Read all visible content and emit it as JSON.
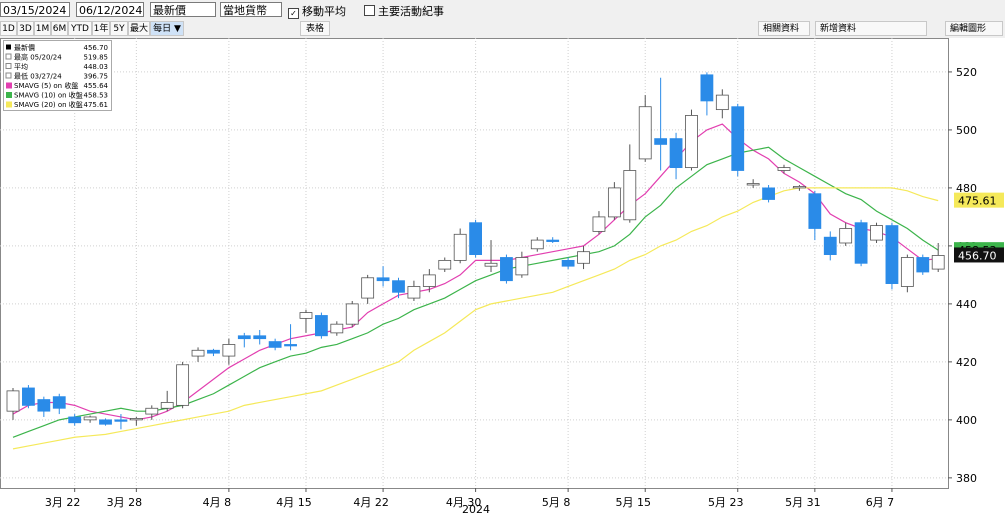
{
  "toolbar": {
    "start_date": "03/15/2024",
    "end_date": "06/12/2024",
    "field": "最新價",
    "currency": "當地貨幣",
    "moving_average": "移動平均",
    "events": "主要活動紀事"
  },
  "buttons": [
    "1D",
    "3D",
    "1M",
    "6M",
    "YTD",
    "1年",
    "5Y",
    "最大",
    "每日 ▼",
    "表格"
  ],
  "right_buttons": [
    "相關資料",
    "新增資料",
    "編輯圖形"
  ],
  "chart_data": {
    "type": "candlestick",
    "categories": [
      null,
      null,
      null,
      null,
      "3月 22",
      null,
      null,
      null,
      "3月 28",
      null,
      null,
      null,
      null,
      null,
      "4月 8",
      null,
      null,
      null,
      null,
      "4月 15",
      null,
      null,
      null,
      null,
      "4月 22",
      null,
      null,
      null,
      null,
      null,
      "4月 30",
      null,
      null,
      null,
      null,
      null,
      "5月 8",
      null,
      null,
      null,
      null,
      "5月 15",
      null,
      null,
      null,
      null,
      null,
      "5月 23",
      null,
      null,
      null,
      null,
      "5月 31",
      null,
      null,
      null,
      null,
      "6月 7",
      null,
      null,
      null
    ],
    "open": [
      403,
      411,
      407,
      408,
      401,
      400,
      400,
      400,
      400,
      402,
      404,
      405,
      422,
      424,
      422,
      429,
      429,
      427,
      426,
      435,
      436,
      430,
      433,
      442,
      449,
      448,
      442,
      446,
      452,
      455,
      468,
      453,
      456,
      450,
      459,
      462,
      455,
      454,
      465,
      470,
      469,
      490,
      497,
      497,
      487,
      519,
      507,
      508,
      481,
      480,
      486,
      480,
      478,
      463,
      461,
      468,
      462,
      467,
      446,
      456,
      452
    ],
    "high": [
      411,
      412,
      408,
      409,
      402,
      401.5,
      400.5,
      402,
      401,
      405,
      410,
      420,
      425,
      424.5,
      428,
      430,
      431,
      428,
      433,
      438,
      437,
      434,
      441,
      450,
      453,
      449,
      448,
      452,
      456,
      466,
      469,
      462,
      457,
      458,
      463,
      463,
      456,
      460,
      472,
      482,
      495,
      512,
      518,
      499,
      507,
      519.85,
      514,
      509,
      483,
      481,
      488,
      481,
      479,
      465,
      468,
      469,
      468,
      468,
      457,
      457,
      461
    ],
    "low": [
      400,
      404,
      401,
      402,
      398,
      399,
      398,
      396.75,
      398,
      400,
      403,
      404,
      420,
      422,
      419,
      425,
      426,
      424,
      424,
      430,
      428,
      429,
      432,
      440,
      446,
      442,
      441,
      444,
      451,
      454,
      456,
      451,
      447,
      449,
      458,
      461,
      452,
      452,
      464,
      469,
      468,
      489,
      486,
      483,
      486,
      505,
      504,
      484,
      480,
      475,
      485,
      479,
      462,
      455,
      460,
      453,
      461,
      445,
      444,
      450,
      451
    ],
    "close": [
      410,
      405,
      403,
      404,
      399,
      401,
      398.5,
      399.5,
      400.5,
      404,
      406,
      419,
      424,
      423,
      426,
      428,
      428,
      425,
      425.5,
      437,
      429,
      433,
      440,
      449,
      448,
      444,
      446,
      450,
      455,
      464,
      457,
      454,
      448,
      456,
      462,
      461.5,
      453,
      458,
      470,
      480,
      486,
      508,
      495,
      487,
      505,
      510,
      512,
      486,
      481.5,
      476,
      487,
      480.5,
      466,
      457,
      466,
      454,
      467,
      447,
      456,
      451,
      456.7
    ],
    "up_color": "#ffffff",
    "down_color": "#2a8be8",
    "series": [
      {
        "name": "SMAVG (5) on 收盤",
        "color": "#e23fb0",
        "legend_value": "455.64",
        "values": [
          402,
          405,
          406,
          406,
          405,
          403,
          402,
          401,
          400,
          401,
          403,
          406,
          410,
          414,
          418,
          421,
          424,
          426,
          428,
          429,
          430,
          431,
          432,
          437,
          440,
          443,
          444,
          445,
          447,
          450,
          455,
          455,
          455,
          456,
          457,
          458,
          459,
          460,
          464,
          469,
          474,
          478,
          484,
          490,
          496,
          500,
          502,
          497,
          493,
          490,
          485,
          482,
          478,
          471,
          468,
          466,
          465,
          463,
          459,
          455,
          455.64
        ]
      },
      {
        "name": "SMAVG (10) on 收盤",
        "color": "#3cb44b",
        "legend_value": "458.53",
        "values": [
          394,
          396,
          398,
          400,
          401,
          402,
          403,
          404,
          403,
          403,
          404,
          405,
          407,
          409,
          412,
          415,
          418,
          420,
          422,
          423,
          425,
          426,
          428,
          430,
          433,
          435,
          438,
          440,
          442,
          445,
          448,
          450,
          452,
          453,
          454,
          455,
          456,
          457,
          458,
          460,
          464,
          470,
          474,
          480,
          484,
          488,
          490,
          492,
          493,
          494,
          490,
          487,
          484,
          481,
          478,
          476,
          472,
          469,
          466,
          462,
          458.53
        ]
      },
      {
        "name": "SMAVG (20) on 收盤",
        "color": "#f5e95a",
        "legend_value": "475.61",
        "values": [
          390,
          391,
          392,
          393,
          394,
          394.5,
          395,
          396,
          397,
          398,
          399,
          400,
          401,
          402,
          403,
          405,
          406,
          407,
          408,
          409,
          410,
          412,
          414,
          416,
          418,
          420,
          424,
          427,
          430,
          434,
          438,
          440,
          441,
          442,
          443,
          444,
          446,
          448,
          450,
          452,
          455,
          457,
          460,
          462,
          465,
          467,
          470,
          472,
          475,
          477,
          479,
          480,
          480,
          480,
          480,
          480,
          480,
          480,
          479,
          477,
          475.61
        ]
      }
    ],
    "stats": [
      {
        "label": "最新價",
        "value": "456.70"
      },
      {
        "label": "最高 05/20/24",
        "value": "519.85"
      },
      {
        "label": "平均",
        "value": "448.03"
      },
      {
        "label": "最低 03/27/24",
        "value": "396.75"
      }
    ],
    "ylim": [
      376.5,
      531.7
    ],
    "yticks": [
      380,
      400,
      420,
      440,
      460,
      480,
      500,
      520
    ],
    "grid": true,
    "x_axis_label": "2024"
  }
}
